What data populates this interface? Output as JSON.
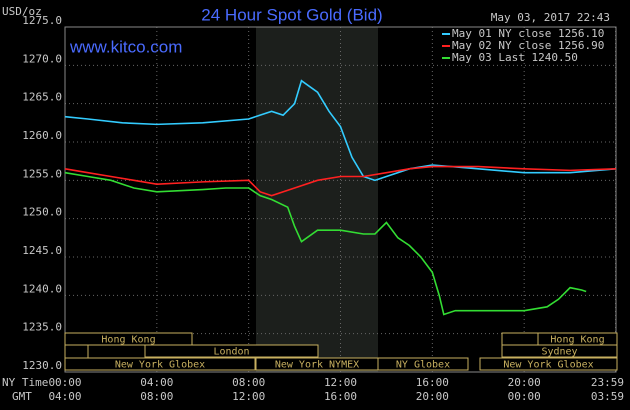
{
  "chart_data": {
    "type": "line",
    "title": "24 Hour Spot Gold (Bid)",
    "unit_label": "USD/oz",
    "timestamp": "May 03, 2017 22:43",
    "site": "www.kitco.com",
    "x_axis_labels": [
      "NY Time",
      "GMT"
    ],
    "xlim": [
      0,
      24
    ],
    "xticks": [
      {
        "value": 0,
        "label": "00:00"
      },
      {
        "value": 4,
        "label": "04:00"
      },
      {
        "value": 8,
        "label": "08:00"
      },
      {
        "value": 12,
        "label": "12:00"
      },
      {
        "value": 16,
        "label": "16:00"
      },
      {
        "value": 20,
        "label": "20:00"
      },
      {
        "value": 23.98,
        "label": "23:59"
      }
    ],
    "gmt_labels": [
      "04:00",
      "08:00",
      "12:00",
      "16:00",
      "20:00",
      "00:00",
      "03:59"
    ],
    "ylim": [
      1230,
      1275
    ],
    "yticks": [
      {
        "value": 1230,
        "label": "1230.0"
      },
      {
        "value": 1235,
        "label": "1235.0"
      },
      {
        "value": 1240,
        "label": "1240.0"
      },
      {
        "value": 1245,
        "label": "1245.0"
      },
      {
        "value": 1250,
        "label": "1250.0"
      },
      {
        "value": 1255,
        "label": "1255.0"
      },
      {
        "value": 1260,
        "label": "1260.0"
      },
      {
        "value": 1265,
        "label": "1265.0"
      },
      {
        "value": 1270,
        "label": "1270.0"
      },
      {
        "value": 1275,
        "label": "1275.0"
      }
    ],
    "grid": true,
    "sessions": [
      "Hong Kong",
      "London",
      "New York Globex",
      "New York NYMEX",
      "NY Globex",
      "Hong Kong",
      "Sydney",
      "New York Globex"
    ],
    "series": [
      {
        "name": "May 01 NY close 1256.10",
        "color": "#33ccff",
        "x": [
          0,
          1,
          2.5,
          4,
          6,
          8,
          8.5,
          9,
          9.5,
          10,
          10.3,
          11,
          11.5,
          12,
          12.5,
          13,
          13.5,
          14,
          15,
          16,
          18,
          20,
          22,
          24
        ],
        "values": [
          1263.3,
          1263,
          1262.5,
          1262.3,
          1262.5,
          1263,
          1263.5,
          1264,
          1263.5,
          1265,
          1268,
          1266.5,
          1264,
          1262,
          1258,
          1255.5,
          1255,
          1255.5,
          1256.5,
          1257,
          1256.5,
          1256,
          1256,
          1256.5
        ]
      },
      {
        "name": "May 02 NY close 1256.90",
        "color": "#ff2020",
        "x": [
          0,
          1,
          2,
          3,
          4,
          6,
          8,
          8.5,
          9,
          10,
          11,
          12,
          13,
          14,
          15,
          16,
          18,
          20,
          22,
          24
        ],
        "values": [
          1256.5,
          1256,
          1255.5,
          1255,
          1254.5,
          1254.8,
          1255,
          1253.5,
          1253,
          1254,
          1255,
          1255.5,
          1255.5,
          1256,
          1256.5,
          1256.8,
          1256.8,
          1256.5,
          1256.3,
          1256.5
        ]
      },
      {
        "name": "May 03 Last 1240.50",
        "color": "#33dd33",
        "x": [
          0,
          1,
          2,
          3,
          4,
          6,
          7,
          8,
          8.5,
          9,
          9.7,
          10,
          10.3,
          11,
          12,
          13,
          13.5,
          14,
          14.5,
          15,
          15.5,
          16,
          16.3,
          16.5,
          17,
          18,
          19,
          20,
          21,
          21.5,
          22,
          22.5,
          22.7
        ],
        "values": [
          1256,
          1255.5,
          1255,
          1254,
          1253.5,
          1253.8,
          1254,
          1254,
          1253,
          1252.5,
          1251.5,
          1249,
          1247,
          1248.5,
          1248.5,
          1248,
          1248,
          1249.5,
          1247.5,
          1246.5,
          1245,
          1243,
          1240,
          1237.5,
          1238,
          1238,
          1238,
          1238,
          1238.5,
          1239.5,
          1241,
          1240.7,
          1240.5
        ]
      }
    ]
  }
}
